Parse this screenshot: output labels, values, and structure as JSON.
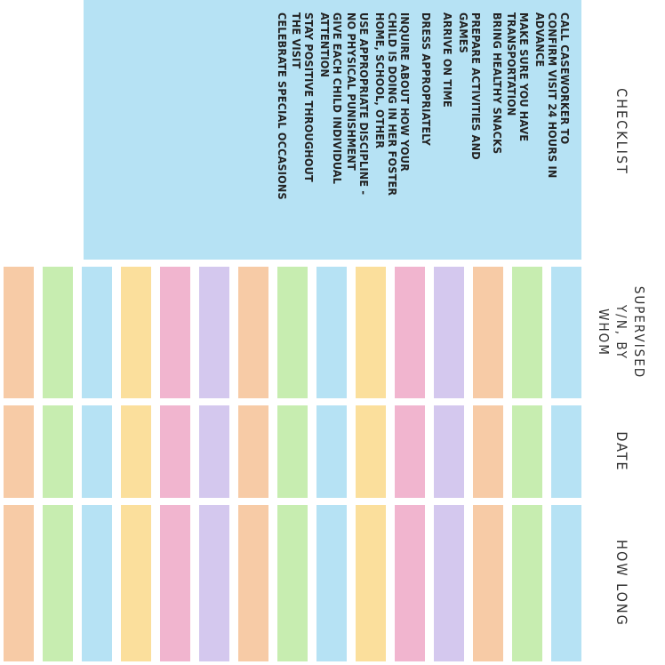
{
  "headers": {
    "checklist": "CHECKLIST",
    "supervised": "SUPERVISED\nY/N, BY\nWHOM",
    "date": "DATE",
    "how_long": "HOW LONG"
  },
  "checklist": [
    "CALL CASEWORKER TO\nCONFIRM VISIT 24 HOURS IN\nADVANCE",
    "MAKE SURE YOU HAVE\nTRANSPORTATION",
    "BRING HEALTHY SNACKS",
    "PREPARE ACTIVITIES AND\nGAMES",
    "ARRIVE ON TIME",
    "DRESS APPROPRIATELY",
    "INQUIRE ABOUT HOW YOUR\nCHILD IS DOING IN HER FOSTER\nHOME, SCHOOL, OTHER",
    "USE APPROPRIATE DISCIPLINE -\nNO PHYSICAL PUNISHMENT",
    "GIVE EACH CHILD INDIVIDUAL\nATTENTION",
    "STAY POSITIVE THROUGHOUT\nTHE VISIT",
    "CELEBRATE SPECIAL OCCASIONS"
  ],
  "row_colors": [
    "#b6e2f4",
    "#c7edb0",
    "#f7cba6",
    "#d4c8ee",
    "#f1b5cf",
    "#fbdf9c",
    "#b6e2f4",
    "#c7edb0",
    "#f7cba6",
    "#d4c8ee",
    "#f1b5cf",
    "#fbdf9c",
    "#b6e2f4",
    "#c7edb0",
    "#f7cba6"
  ],
  "panel_color": "#b6e2f4"
}
